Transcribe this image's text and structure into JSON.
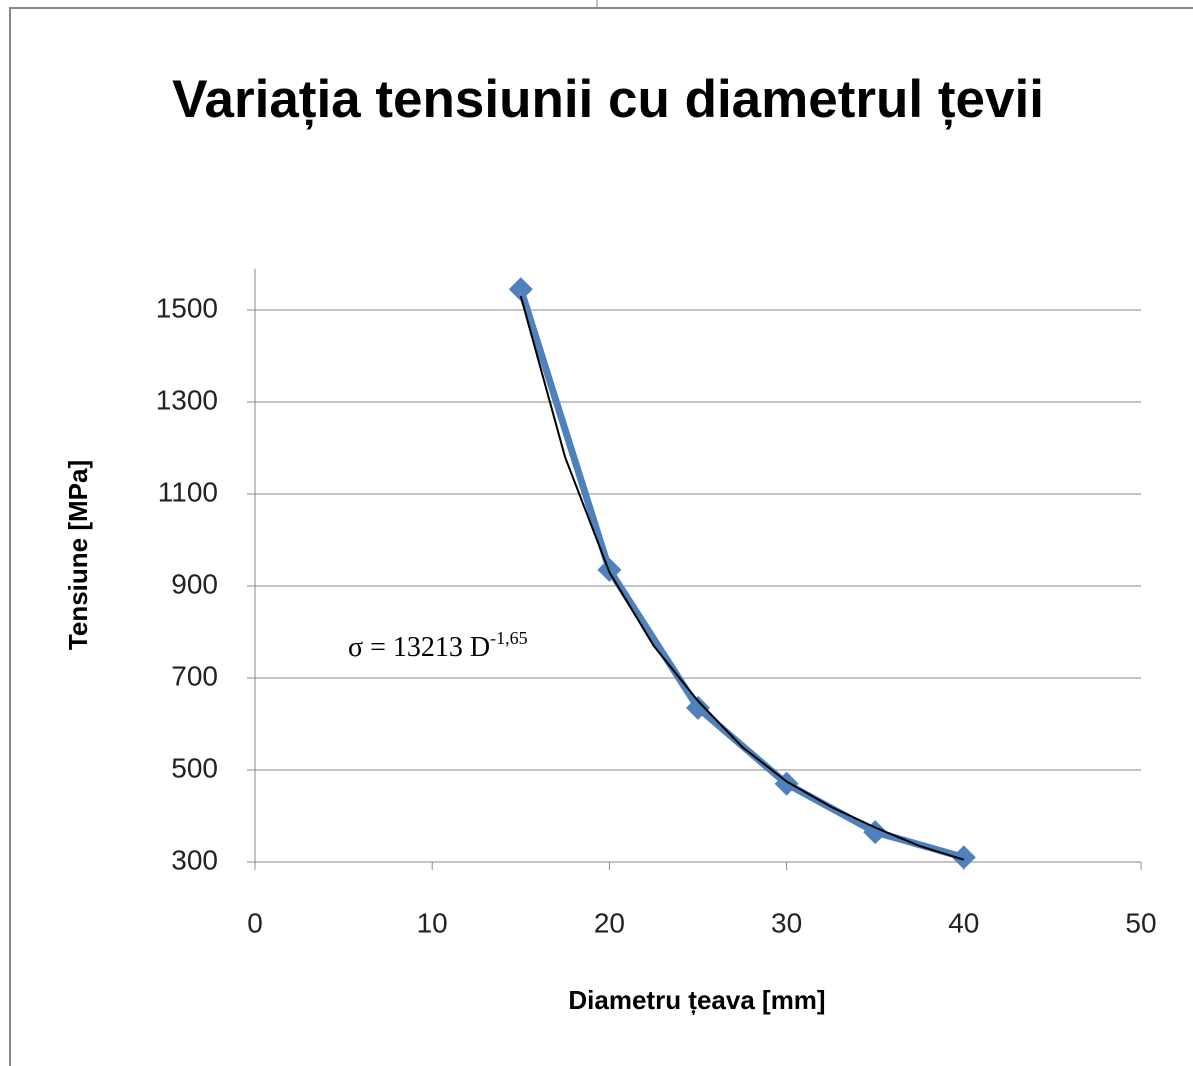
{
  "chart_data": {
    "type": "line",
    "title": "Variația tensiunii cu diametrul țevii",
    "x_label": "Diametru țeava [mm]",
    "y_label": "Tensiune [MPa]",
    "annotation": {
      "text": "σ = 13213 D",
      "superscript": "-1,65"
    },
    "series": [
      {
        "color": "#4f81bd",
        "marker": "diamond",
        "x": [
          15,
          20,
          25,
          30,
          35,
          40
        ],
        "values": [
          1545,
          935,
          635,
          470,
          365,
          310
        ]
      },
      {
        "color": "#000000",
        "x": [
          15,
          17.5,
          20,
          22.5,
          25,
          27.5,
          30,
          32.5,
          35,
          37.5,
          40
        ],
        "values": [
          1530,
          1180,
          930,
          770,
          650,
          550,
          475,
          420,
          375,
          335,
          305
        ]
      }
    ],
    "xlim": [
      0,
      50
    ],
    "xticks": [
      0,
      10,
      20,
      30,
      40,
      50
    ],
    "ylim": [
      300,
      1590
    ],
    "yticks": [
      300,
      500,
      700,
      900,
      1100,
      1300,
      1500
    ],
    "grid": true
  }
}
